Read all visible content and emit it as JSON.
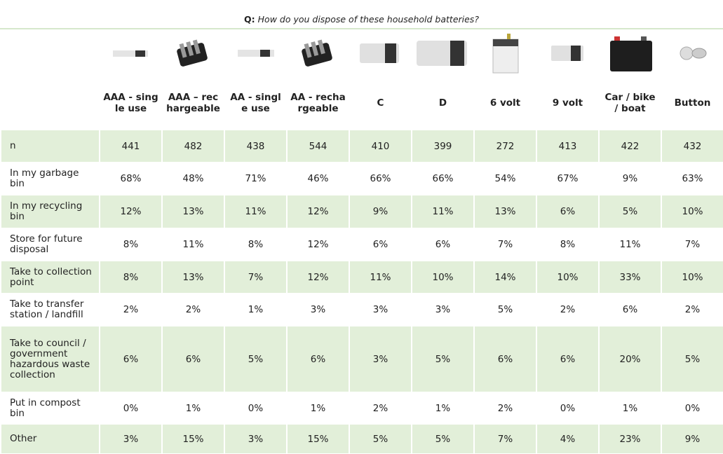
{
  "title": {
    "prefix": "Q:",
    "text": "How do you dispose of these household batteries?"
  },
  "table": {
    "columns": [
      "AAA - single use",
      "AAA – rechargeable",
      "AA - single use",
      "AA - rechargeable",
      "C",
      "D",
      "6 volt",
      "9 volt",
      "Car / bike / boat",
      "Button"
    ],
    "rows": [
      {
        "label": "n",
        "cells": [
          "441",
          "482",
          "438",
          "544",
          "410",
          "399",
          "272",
          "413",
          "422",
          "432"
        ]
      },
      {
        "label": "In my garbage bin",
        "cells": [
          "68%",
          "48%",
          "71%",
          "46%",
          "66%",
          "66%",
          "54%",
          "67%",
          "9%",
          "63%"
        ]
      },
      {
        "label": "In my recycling bin",
        "cells": [
          "12%",
          "13%",
          "11%",
          "12%",
          "9%",
          "11%",
          "13%",
          "6%",
          "5%",
          "10%"
        ]
      },
      {
        "label": "Store for future disposal",
        "cells": [
          "8%",
          "11%",
          "8%",
          "12%",
          "6%",
          "6%",
          "7%",
          "8%",
          "11%",
          "7%"
        ]
      },
      {
        "label": "Take to collection point",
        "cells": [
          "8%",
          "13%",
          "7%",
          "12%",
          "11%",
          "10%",
          "14%",
          "10%",
          "33%",
          "10%"
        ]
      },
      {
        "label": "Take to transfer station / landfill",
        "cells": [
          "2%",
          "2%",
          "1%",
          "3%",
          "3%",
          "3%",
          "5%",
          "2%",
          "6%",
          "2%"
        ]
      },
      {
        "label": "Take to council / government hazardous waste collection",
        "cells": [
          "6%",
          "6%",
          "5%",
          "6%",
          "3%",
          "5%",
          "6%",
          "6%",
          "20%",
          "5%"
        ]
      },
      {
        "label": "Put in compost bin",
        "cells": [
          "0%",
          "1%",
          "0%",
          "1%",
          "2%",
          "1%",
          "2%",
          "0%",
          "1%",
          "0%"
        ]
      },
      {
        "label": "Other",
        "cells": [
          "3%",
          "15%",
          "3%",
          "15%",
          "5%",
          "5%",
          "7%",
          "4%",
          "23%",
          "9%"
        ]
      }
    ]
  }
}
